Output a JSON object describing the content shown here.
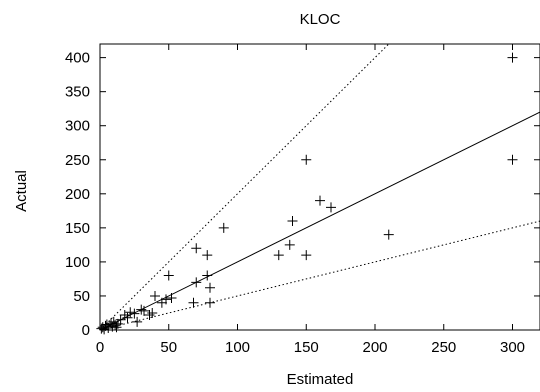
{
  "chart_data": {
    "type": "scatter",
    "title": "KLOC",
    "xlabel": "Estimated",
    "ylabel": "Actual",
    "xlim": [
      0,
      320
    ],
    "ylim": [
      0,
      420
    ],
    "xticks": [
      0,
      50,
      100,
      150,
      200,
      250,
      300
    ],
    "yticks": [
      0,
      50,
      100,
      150,
      200,
      250,
      300,
      350,
      400
    ],
    "grid": false,
    "marker": "+",
    "points": [
      [
        1,
        2
      ],
      [
        2,
        4
      ],
      [
        3,
        1
      ],
      [
        4,
        6
      ],
      [
        5,
        8
      ],
      [
        6,
        3
      ],
      [
        8,
        10
      ],
      [
        9,
        5
      ],
      [
        10,
        12
      ],
      [
        11,
        7
      ],
      [
        12,
        4
      ],
      [
        13,
        9
      ],
      [
        15,
        15
      ],
      [
        18,
        22
      ],
      [
        20,
        18
      ],
      [
        22,
        26
      ],
      [
        25,
        24
      ],
      [
        27,
        12
      ],
      [
        30,
        30
      ],
      [
        32,
        28
      ],
      [
        36,
        22
      ],
      [
        38,
        25
      ],
      [
        40,
        50
      ],
      [
        45,
        40
      ],
      [
        48,
        45
      ],
      [
        50,
        80
      ],
      [
        52,
        47
      ],
      [
        68,
        40
      ],
      [
        70,
        120
      ],
      [
        70,
        70
      ],
      [
        78,
        110
      ],
      [
        78,
        80
      ],
      [
        80,
        40
      ],
      [
        80,
        62
      ],
      [
        90,
        150
      ],
      [
        130,
        110
      ],
      [
        138,
        125
      ],
      [
        140,
        160
      ],
      [
        150,
        250
      ],
      [
        150,
        110
      ],
      [
        160,
        190
      ],
      [
        168,
        180
      ],
      [
        210,
        140
      ],
      [
        300,
        400
      ],
      [
        300,
        250
      ]
    ],
    "lines": [
      {
        "style": "solid",
        "slope": 1.0
      },
      {
        "style": "dotted",
        "slope": 2.0
      },
      {
        "style": "dotted",
        "slope": 0.5
      }
    ]
  }
}
